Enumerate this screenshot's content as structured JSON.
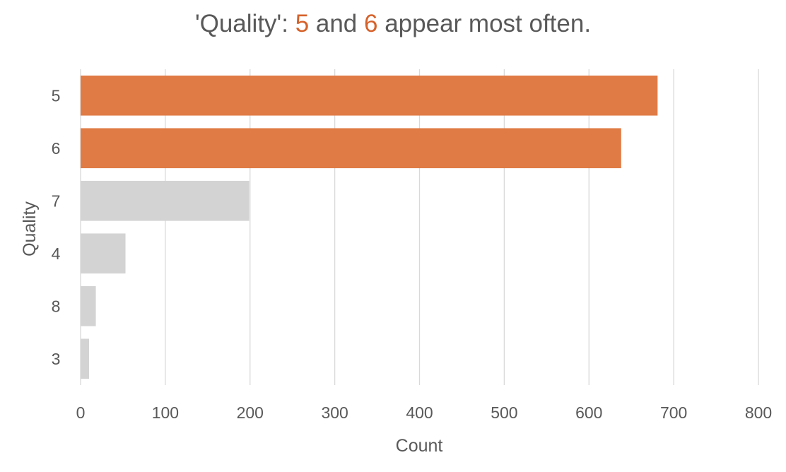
{
  "title": {
    "part1": "'Quality': ",
    "hl1": "5",
    "part2": " and ",
    "hl2": "6",
    "part3": " appear most often."
  },
  "colors": {
    "highlight": "#e07b45",
    "muted": "#d3d3d3",
    "grid": "#d9d9d9",
    "text": "#595959"
  },
  "chart_data": {
    "type": "bar",
    "orientation": "horizontal",
    "categories": [
      "5",
      "6",
      "7",
      "4",
      "8",
      "3"
    ],
    "values": [
      681,
      638,
      199,
      53,
      18,
      10
    ],
    "highlighted": [
      "5",
      "6"
    ],
    "xlabel": "Count",
    "ylabel": "Quality",
    "xlim": [
      0,
      800
    ],
    "xticks": [
      0,
      100,
      200,
      300,
      400,
      500,
      600,
      700,
      800
    ],
    "grid": "vertical"
  }
}
